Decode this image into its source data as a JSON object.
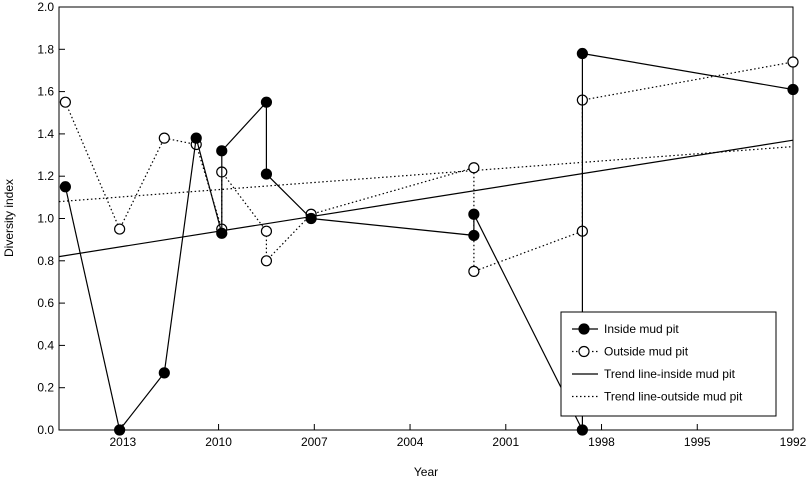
{
  "chart_data": {
    "type": "line",
    "title": "",
    "xlabel": "Year",
    "ylabel": "Diversity index",
    "xlim": [
      2015,
      1992
    ],
    "ylim": [
      0.0,
      2.0
    ],
    "x_reversed": true,
    "xticks": [
      2013,
      2010,
      2007,
      2004,
      2001,
      1998,
      1995,
      1992
    ],
    "yticks": [
      0.0,
      0.2,
      0.4,
      0.6,
      0.8,
      1.0,
      1.2,
      1.4,
      1.6,
      1.8,
      2.0
    ],
    "ytick_labels": [
      "0.0",
      "0.2",
      "0.4",
      "0.6",
      "0.8",
      "1.0",
      "1.2",
      "1.4",
      "1.6",
      "1.8",
      "2.0"
    ],
    "grid": false,
    "legend_position": "bottom-right",
    "series": [
      {
        "name": "Inside mud pit",
        "style": "solid",
        "marker": "filled-circle",
        "color": "#000000",
        "points": [
          {
            "x": 2014.8,
            "y": 1.15
          },
          {
            "x": 2013.1,
            "y": 0.0
          },
          {
            "x": 2011.7,
            "y": 0.27
          },
          {
            "x": 2010.7,
            "y": 1.38
          },
          {
            "x": 2009.9,
            "y": 0.93
          },
          {
            "x": 2009.9,
            "y": 1.32
          },
          {
            "x": 2008.5,
            "y": 1.55
          },
          {
            "x": 2008.5,
            "y": 1.21
          },
          {
            "x": 2007.1,
            "y": 1.0
          },
          {
            "x": 2002.0,
            "y": 0.92
          },
          {
            "x": 2002.0,
            "y": 1.02
          },
          {
            "x": 1998.6,
            "y": 0.0
          },
          {
            "x": 1998.6,
            "y": 1.78
          },
          {
            "x": 1992.0,
            "y": 1.61
          }
        ]
      },
      {
        "name": "Outside mud pit",
        "style": "dotted",
        "marker": "open-circle",
        "color": "#000000",
        "points": [
          {
            "x": 2014.8,
            "y": 1.55
          },
          {
            "x": 2013.1,
            "y": 0.95
          },
          {
            "x": 2011.7,
            "y": 1.38
          },
          {
            "x": 2010.7,
            "y": 1.35
          },
          {
            "x": 2009.9,
            "y": 0.95
          },
          {
            "x": 2009.9,
            "y": 1.22
          },
          {
            "x": 2008.5,
            "y": 0.94
          },
          {
            "x": 2008.5,
            "y": 0.8
          },
          {
            "x": 2007.1,
            "y": 1.02
          },
          {
            "x": 2002.0,
            "y": 1.24
          },
          {
            "x": 2002.0,
            "y": 0.75
          },
          {
            "x": 1998.6,
            "y": 0.94
          },
          {
            "x": 1998.6,
            "y": 1.56
          },
          {
            "x": 1992.0,
            "y": 1.74
          }
        ]
      },
      {
        "name": "Trend line-inside mud pit",
        "style": "solid",
        "marker": "none",
        "color": "#000000",
        "points": [
          {
            "x": 2015.0,
            "y": 0.82
          },
          {
            "x": 1992.0,
            "y": 1.37
          }
        ]
      },
      {
        "name": "Trend line-outside mud pit",
        "style": "dotted",
        "marker": "none",
        "color": "#000000",
        "points": [
          {
            "x": 2015.0,
            "y": 1.08
          },
          {
            "x": 1992.0,
            "y": 1.34
          }
        ]
      }
    ]
  }
}
